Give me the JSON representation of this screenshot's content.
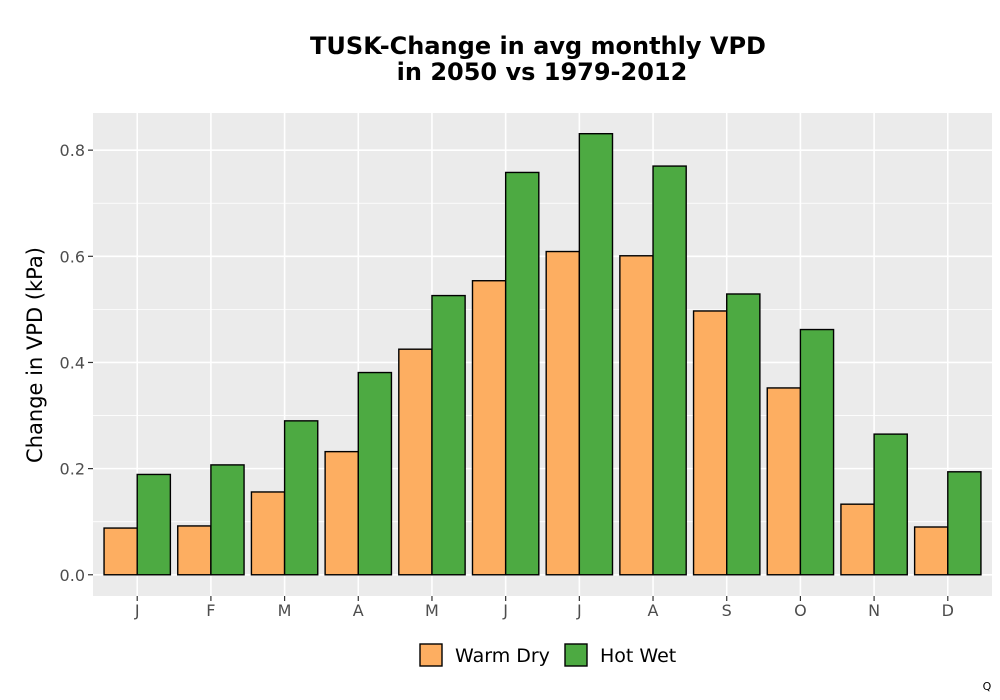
{
  "chart_data": {
    "type": "bar",
    "title": [
      "TUSK-Change in avg monthly VPD",
      "in 2050 vs 1979-2012"
    ],
    "xlabel": "",
    "ylabel": "Change in VPD (kPa)",
    "categories": [
      "J",
      "F",
      "M",
      "A",
      "M",
      "J",
      "J",
      "A",
      "S",
      "O",
      "N",
      "D"
    ],
    "ylim": [
      -0.04,
      0.87
    ],
    "yticks": [
      0.0,
      0.2,
      0.4,
      0.6,
      0.8
    ],
    "ytick_labels": [
      "0.0",
      "0.2",
      "0.4",
      "0.6",
      "0.8"
    ],
    "grid": true,
    "legend": {
      "position": "bottom"
    },
    "series": [
      {
        "name": "Warm Dry",
        "color": "#fdae61",
        "values": [
          0.088,
          0.092,
          0.156,
          0.232,
          0.425,
          0.554,
          0.609,
          0.601,
          0.497,
          0.352,
          0.133,
          0.09
        ]
      },
      {
        "name": "Hot Wet",
        "color": "#4daa42",
        "values": [
          0.189,
          0.207,
          0.29,
          0.381,
          0.526,
          0.758,
          0.831,
          0.77,
          0.529,
          0.462,
          0.265,
          0.194
        ]
      }
    ]
  },
  "corner_label": "Q",
  "colors": {
    "panel_bg": "#ebebeb",
    "grid": "#ffffff",
    "bar_outline": "#000000"
  }
}
